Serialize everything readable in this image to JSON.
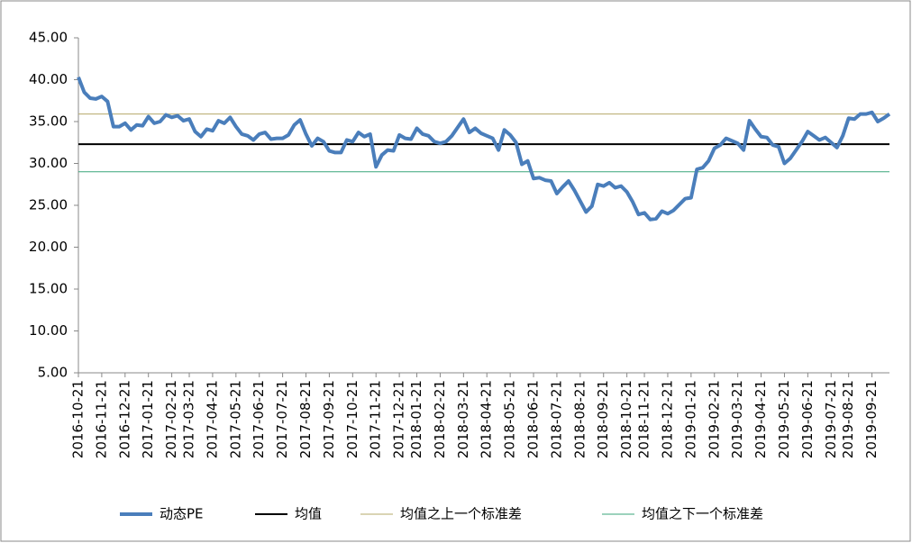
{
  "chart_data": {
    "type": "line",
    "categories": [
      "2016-10-21",
      null,
      null,
      null,
      "2016-11-21",
      null,
      null,
      null,
      "2016-12-21",
      null,
      null,
      null,
      "2017-01-21",
      null,
      null,
      null,
      "2017-02-21",
      null,
      null,
      "2017-03-21",
      null,
      null,
      null,
      "2017-04-21",
      null,
      null,
      null,
      "2017-05-21",
      null,
      null,
      null,
      "2017-06-21",
      null,
      null,
      null,
      "2017-07-21",
      null,
      null,
      null,
      "2017-08-21",
      null,
      null,
      null,
      "2017-09-21",
      null,
      null,
      null,
      "2017-10-21",
      null,
      null,
      null,
      "2017-11-21",
      null,
      null,
      null,
      "2017-12-21",
      null,
      null,
      "2018-01-21",
      null,
      null,
      null,
      "2018-02-21",
      null,
      null,
      null,
      "2018-03-21",
      null,
      null,
      null,
      "2018-04-21",
      null,
      null,
      null,
      "2018-05-21",
      null,
      null,
      null,
      "2018-06-21",
      null,
      null,
      null,
      "2018-07-21",
      null,
      null,
      null,
      "2018-08-21",
      null,
      null,
      null,
      "2018-09-21",
      null,
      null,
      null,
      "2018-10-21",
      null,
      null,
      "2018-11-21",
      null,
      null,
      null,
      "2018-12-21",
      null,
      null,
      null,
      "2019-01-21",
      null,
      null,
      null,
      "2019-02-21",
      null,
      null,
      null,
      "2019-03-21",
      null,
      null,
      null,
      "2019-04-21",
      null,
      null,
      null,
      "2019-05-21",
      null,
      null,
      null,
      "2019-06-21",
      null,
      null,
      null,
      "2019-07-21",
      null,
      null,
      "2019-08-21",
      null,
      null,
      null,
      "2019-09-21",
      null,
      null,
      null
    ],
    "series": [
      {
        "name": "动态PE",
        "color": "#4a7ebb",
        "values": [
          40.3,
          38.5,
          37.8,
          37.7,
          38.0,
          37.4,
          34.4,
          34.4,
          34.8,
          34.0,
          34.6,
          34.5,
          35.6,
          34.8,
          35.0,
          35.8,
          35.5,
          35.7,
          35.1,
          35.3,
          33.8,
          33.2,
          34.1,
          33.9,
          35.1,
          34.8,
          35.5,
          34.4,
          33.5,
          33.3,
          32.8,
          33.5,
          33.7,
          32.9,
          33.0,
          33.0,
          33.4,
          34.6,
          35.2,
          33.5,
          32.1,
          33.0,
          32.6,
          31.5,
          31.3,
          31.3,
          32.8,
          32.6,
          33.7,
          33.2,
          33.5,
          29.6,
          31.0,
          31.6,
          31.5,
          33.4,
          33.0,
          32.9,
          34.2,
          33.5,
          33.3,
          32.6,
          32.4,
          32.6,
          33.3,
          34.3,
          35.3,
          33.7,
          34.2,
          33.6,
          33.3,
          33.0,
          31.6,
          34.0,
          33.4,
          32.5,
          29.9,
          30.3,
          28.2,
          28.3,
          28.0,
          27.9,
          26.4,
          27.2,
          27.9,
          26.8,
          25.5,
          24.2,
          24.9,
          27.5,
          27.3,
          27.7,
          27.1,
          27.3,
          26.6,
          25.4,
          23.9,
          24.1,
          23.3,
          23.4,
          24.3,
          24.0,
          24.4,
          25.1,
          25.8,
          25.9,
          29.3,
          29.5,
          30.3,
          31.8,
          32.2,
          33.0,
          32.7,
          32.4,
          31.6,
          35.1,
          34.1,
          33.2,
          33.1,
          32.2,
          32.0,
          30.0,
          30.6,
          31.6,
          32.6,
          33.8,
          33.3,
          32.8,
          33.1,
          32.5,
          31.9,
          33.3,
          35.4,
          35.3,
          35.9,
          35.9,
          36.1,
          35.0,
          35.4,
          35.9
        ]
      }
    ],
    "reference_lines": [
      {
        "name": "均值",
        "color": "#000000",
        "value": 32.3
      },
      {
        "name": "均值之上一个标准差",
        "color": "#b5a86a",
        "value": 35.9
      },
      {
        "name": "均值之下一个标准差",
        "color": "#3aa57a",
        "value": 29.0
      }
    ],
    "ylim": [
      5,
      45
    ],
    "yticks": [
      {
        "value": 5,
        "label": "5.00"
      },
      {
        "value": 10,
        "label": "10.00"
      },
      {
        "value": 15,
        "label": "15.00"
      },
      {
        "value": 20,
        "label": "20.00"
      },
      {
        "value": 25,
        "label": "25.00"
      },
      {
        "value": 30,
        "label": "30.00"
      },
      {
        "value": 35,
        "label": "35.00"
      },
      {
        "value": 40,
        "label": "40.00"
      },
      {
        "value": 45,
        "label": "45.00"
      }
    ],
    "grid": false,
    "legend": "bottom"
  }
}
